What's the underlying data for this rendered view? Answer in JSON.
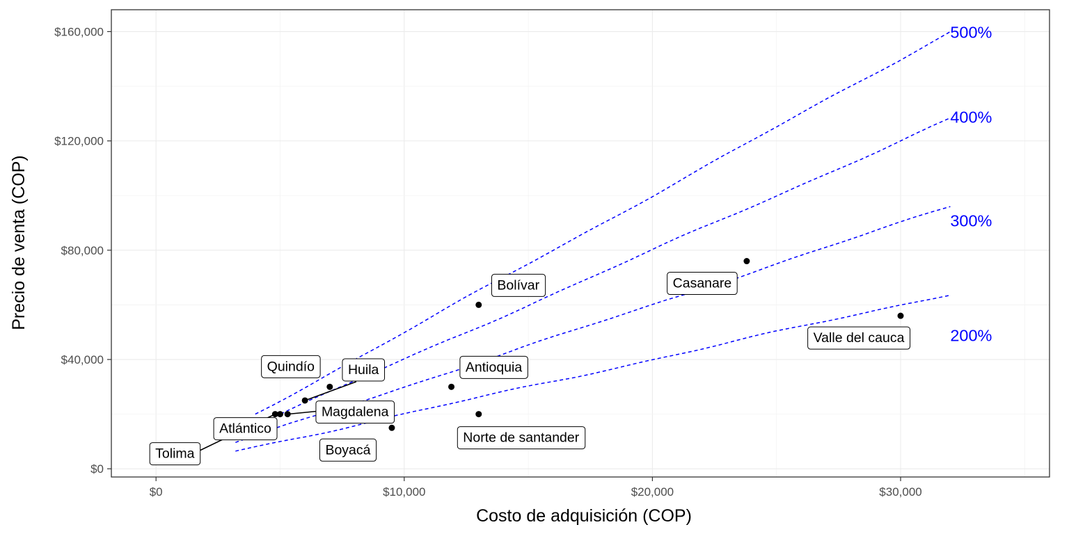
{
  "chart_data": {
    "type": "scatter",
    "title": "",
    "xlabel": "Costo de adquisición (COP)",
    "ylabel": "Precio de venta (COP)",
    "xlim": [
      -1800,
      36000
    ],
    "ylim": [
      -3000,
      168000
    ],
    "x_ticks": [
      0,
      10000,
      20000,
      30000
    ],
    "x_tick_labels": [
      "$0",
      "$10,000",
      "$20,000",
      "$30,000"
    ],
    "y_ticks": [
      0,
      40000,
      80000,
      120000,
      160000
    ],
    "y_tick_labels": [
      "$0",
      "$40,000",
      "$80,000",
      "$120,000",
      "$160,000"
    ],
    "grid": true,
    "points": [
      {
        "label": "Tolima",
        "x": 4800,
        "y": 20000
      },
      {
        "label": "Atlántico",
        "x": 5000,
        "y": 20000
      },
      {
        "label": "Magdalena",
        "x": 5300,
        "y": 20000
      },
      {
        "label": "Huila",
        "x": 6000,
        "y": 25000
      },
      {
        "label": "Quindío",
        "x": 7000,
        "y": 30000
      },
      {
        "label": "Boyacá",
        "x": 9500,
        "y": 15000
      },
      {
        "label": "Antioquia",
        "x": 11900,
        "y": 30000
      },
      {
        "label": "Bolívar",
        "x": 13000,
        "y": 60000
      },
      {
        "label": "Norte de santander",
        "x": 13000,
        "y": 20000
      },
      {
        "label": "Casanare",
        "x": 23800,
        "y": 76000
      },
      {
        "label": "Valle del cauca",
        "x": 30000,
        "y": 56000
      }
    ],
    "reference_lines": [
      {
        "label": "500%",
        "multiplier": 5,
        "x_range": [
          4000,
          32000
        ]
      },
      {
        "label": "400%",
        "multiplier": 4,
        "x_range": [
          3200,
          32000
        ]
      },
      {
        "label": "300%",
        "multiplier": 3,
        "x_range": [
          3200,
          32000
        ]
      },
      {
        "label": "200%",
        "multiplier": 2,
        "x_range": [
          3200,
          32000
        ]
      }
    ],
    "reference_color": "#0000ff",
    "point_color": "#000000"
  }
}
